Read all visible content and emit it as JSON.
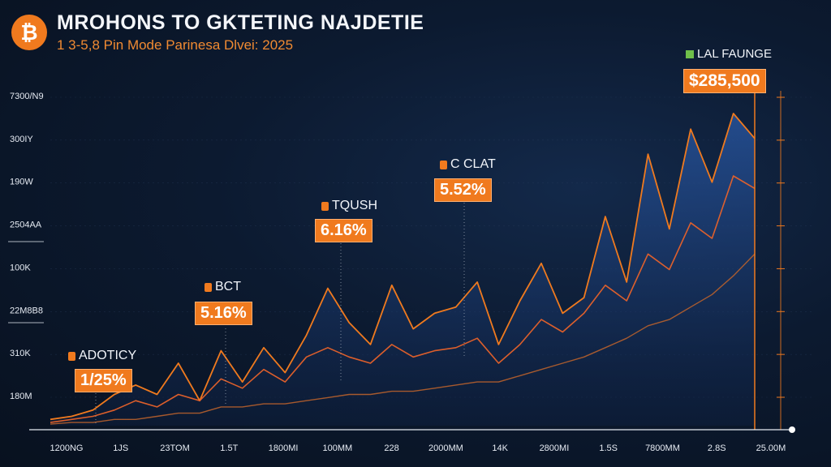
{
  "header": {
    "title": "MROHONS TO GKTETING NAJDETIE",
    "subtitle": "1 3-5,8 Pin Mode Parinesa Dlvei: 2025",
    "logo_glyph": "₿"
  },
  "price": {
    "label": "LAL FAUNGE",
    "value": "$285,500"
  },
  "annotations": [
    {
      "label": "ADOTICY",
      "value": "1/25%"
    },
    {
      "label": "BCT",
      "value": "5.16%"
    },
    {
      "label": "TQUSH",
      "value": "6.16%"
    },
    {
      "label": "C CLAT",
      "value": "5.52%"
    }
  ],
  "colors": {
    "accent": "#f07a1e",
    "background": "#0c1a30",
    "area": "#1d3f7a"
  },
  "chart_data": {
    "type": "line",
    "y_tick_labels": [
      "7300/N9",
      "300IY",
      "190W",
      "2504AA",
      "100K",
      "22M8B8",
      "310K",
      "180M"
    ],
    "x_tick_labels": [
      "1200NG",
      "1JS",
      "23TOM",
      "1.5T",
      "1800MI",
      "100MM",
      "228",
      "2000MM",
      "14K",
      "2800MI",
      "1.5S",
      "7800MM",
      "2.8S",
      "25.00M"
    ],
    "x": [
      0,
      3,
      6,
      9,
      12,
      15,
      18,
      21,
      24,
      27,
      30,
      33,
      36,
      39,
      42,
      45,
      48,
      51,
      54,
      57,
      60,
      63,
      66,
      69,
      72,
      75,
      78,
      81,
      84,
      87,
      90,
      93,
      96,
      99
    ],
    "series": [
      {
        "values": [
          2,
          3,
          5,
          10,
          13,
          10,
          20,
          8,
          24,
          14,
          25,
          17,
          29,
          44,
          33,
          26,
          45,
          31,
          36,
          38,
          46,
          26,
          40,
          52,
          36,
          41,
          67,
          46,
          87,
          63,
          95,
          78,
          100,
          92
        ]
      },
      {
        "values": [
          1,
          2,
          3,
          5,
          8,
          6,
          10,
          8,
          15,
          12,
          18,
          14,
          22,
          25,
          22,
          20,
          26,
          22,
          24,
          25,
          28,
          20,
          26,
          34,
          30,
          36,
          45,
          40,
          55,
          50,
          65,
          60,
          80,
          76
        ]
      },
      {
        "values": [
          0.5,
          1,
          1,
          2,
          2,
          3,
          4,
          4,
          6,
          6,
          7,
          7,
          8,
          9,
          10,
          10,
          11,
          11,
          12,
          13,
          14,
          14,
          16,
          18,
          20,
          22,
          25,
          28,
          32,
          34,
          38,
          42,
          48,
          55
        ]
      }
    ],
    "ylim": [
      0,
      100
    ]
  }
}
